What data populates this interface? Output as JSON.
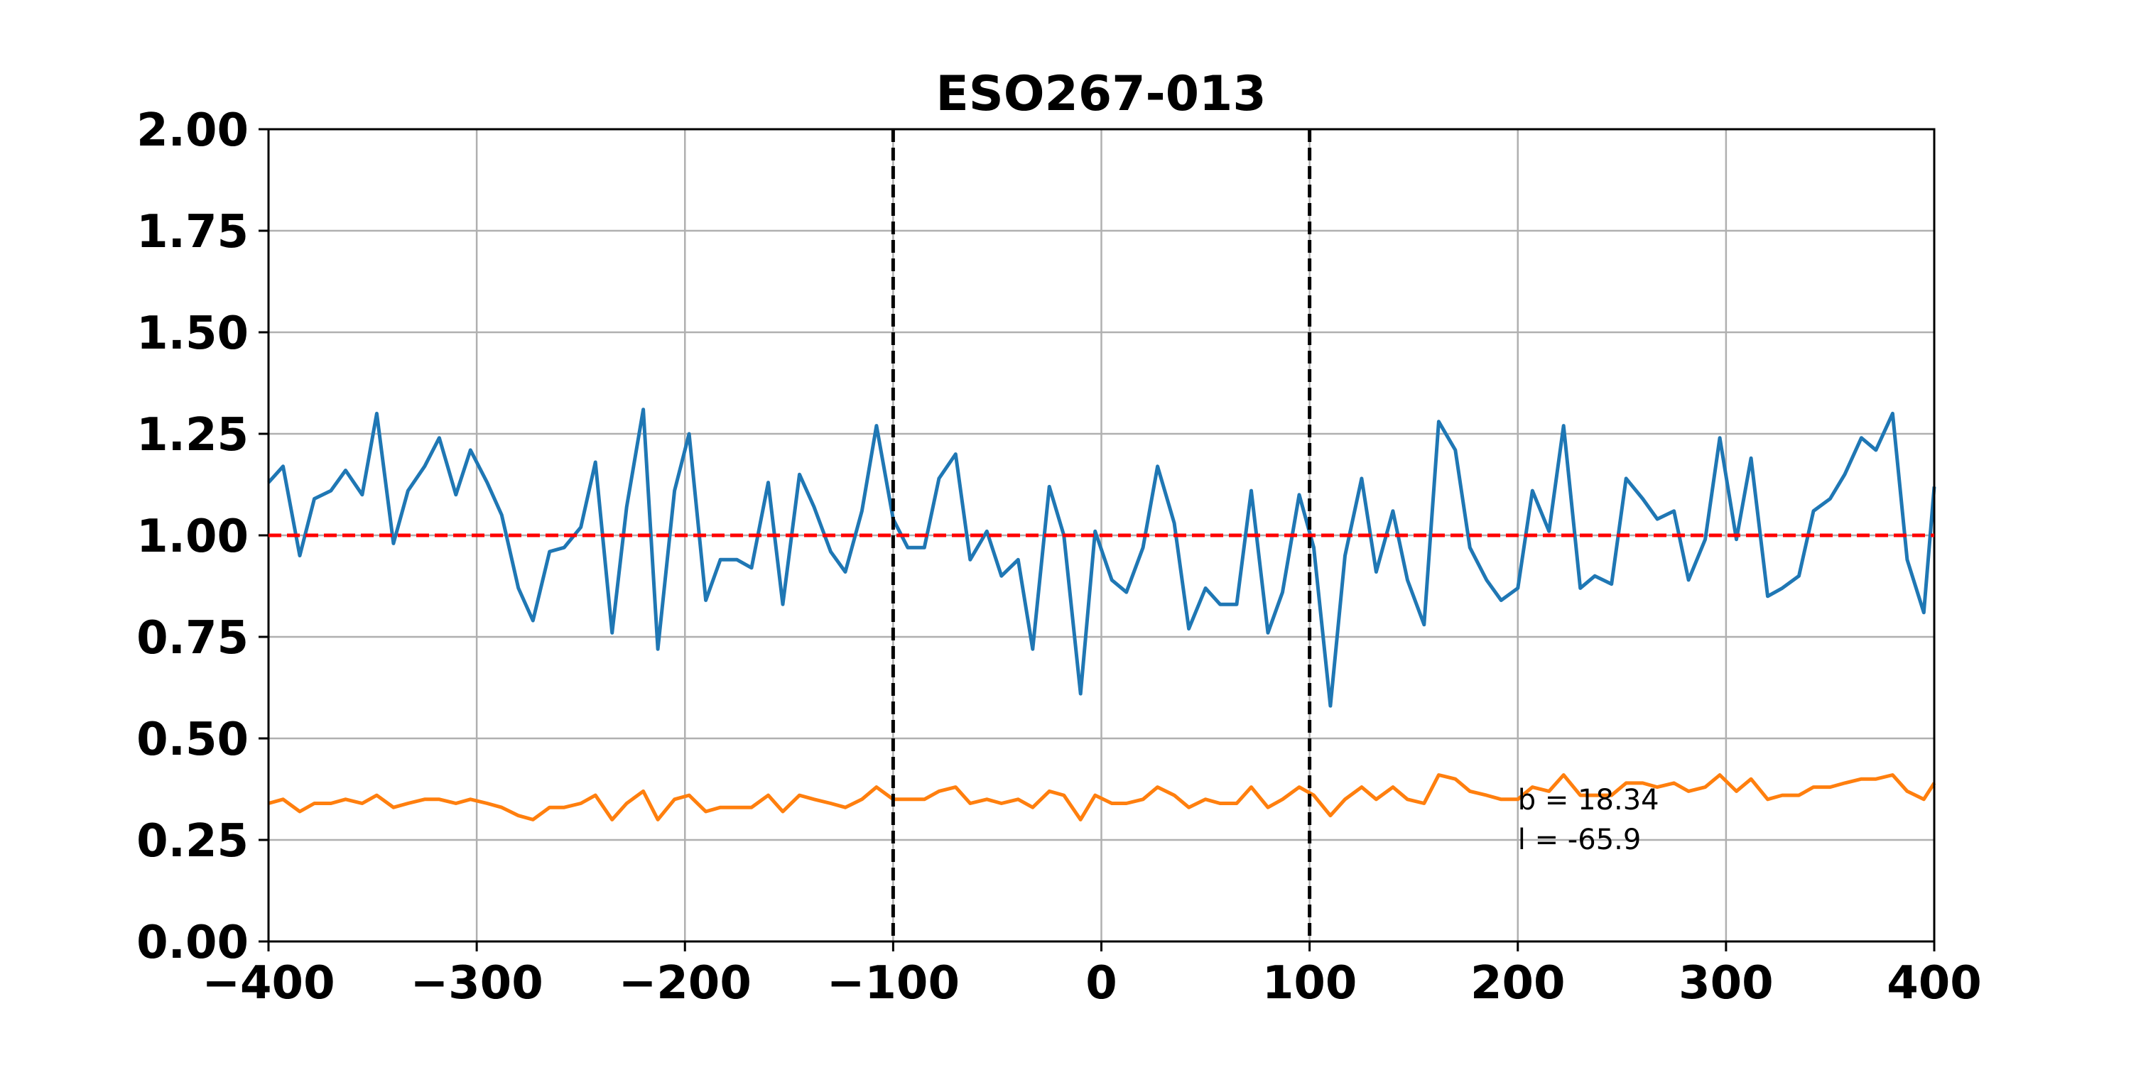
{
  "chart_data": {
    "type": "line",
    "title": "ESO267-013",
    "xlabel": "",
    "ylabel": "",
    "xlim": [
      -400,
      400
    ],
    "ylim": [
      0,
      2
    ],
    "grid": true,
    "xticks": [
      -400,
      -300,
      -200,
      -100,
      0,
      100,
      200,
      300,
      400
    ],
    "xtick_labels": [
      "−400",
      "−300",
      "−200",
      "−100",
      "0",
      "100",
      "200",
      "300",
      "400"
    ],
    "yticks": [
      0,
      0.25,
      0.5,
      0.75,
      1.0,
      1.25,
      1.5,
      1.75,
      2.0
    ],
    "ytick_labels": [
      "0.00",
      "0.25",
      "0.50",
      "0.75",
      "1.00",
      "1.25",
      "1.50",
      "1.75",
      "2.00"
    ],
    "hlines": [
      {
        "y": 1.0,
        "color": "#ff0000",
        "style": "dashed"
      }
    ],
    "vlines": [
      {
        "x": -100,
        "color": "#000000",
        "style": "dashed"
      },
      {
        "x": 100,
        "color": "#000000",
        "style": "dashed"
      }
    ],
    "annotations": [
      "b = 18.34",
      "l = -65.9"
    ],
    "annotation_anchor": {
      "x": 200,
      "y": 0.35
    },
    "series": [
      {
        "name": "series-1",
        "color": "#1f77b4",
        "points": [
          [
            -400,
            1.13
          ],
          [
            -393,
            1.17
          ],
          [
            -385,
            0.95
          ],
          [
            -378,
            1.09
          ],
          [
            -370,
            1.11
          ],
          [
            -363,
            1.16
          ],
          [
            -355,
            1.1
          ],
          [
            -348,
            1.3
          ],
          [
            -340,
            0.98
          ],
          [
            -333,
            1.11
          ],
          [
            -325,
            1.17
          ],
          [
            -318,
            1.24
          ],
          [
            -310,
            1.1
          ],
          [
            -303,
            1.21
          ],
          [
            -295,
            1.13
          ],
          [
            -288,
            1.05
          ],
          [
            -280,
            0.87
          ],
          [
            -273,
            0.79
          ],
          [
            -265,
            0.96
          ],
          [
            -258,
            0.97
          ],
          [
            -250,
            1.02
          ],
          [
            -243,
            1.18
          ],
          [
            -235,
            0.76
          ],
          [
            -228,
            1.07
          ],
          [
            -220,
            1.31
          ],
          [
            -213,
            0.72
          ],
          [
            -205,
            1.11
          ],
          [
            -198,
            1.25
          ],
          [
            -190,
            0.84
          ],
          [
            -183,
            0.94
          ],
          [
            -175,
            0.94
          ],
          [
            -168,
            0.92
          ],
          [
            -160,
            1.13
          ],
          [
            -153,
            0.83
          ],
          [
            -145,
            1.15
          ],
          [
            -138,
            1.07
          ],
          [
            -130,
            0.96
          ],
          [
            -123,
            0.91
          ],
          [
            -115,
            1.06
          ],
          [
            -108,
            1.27
          ],
          [
            -100,
            1.04
          ],
          [
            -93,
            0.97
          ],
          [
            -85,
            0.97
          ],
          [
            -78,
            1.14
          ],
          [
            -70,
            1.2
          ],
          [
            -63,
            0.94
          ],
          [
            -55,
            1.01
          ],
          [
            -48,
            0.9
          ],
          [
            -40,
            0.94
          ],
          [
            -33,
            0.72
          ],
          [
            -25,
            1.12
          ],
          [
            -18,
            1.0
          ],
          [
            -10,
            0.61
          ],
          [
            -3,
            1.01
          ],
          [
            5,
            0.89
          ],
          [
            12,
            0.86
          ],
          [
            20,
            0.97
          ],
          [
            27,
            1.17
          ],
          [
            35,
            1.03
          ],
          [
            42,
            0.77
          ],
          [
            50,
            0.87
          ],
          [
            57,
            0.83
          ],
          [
            65,
            0.83
          ],
          [
            72,
            1.11
          ],
          [
            80,
            0.76
          ],
          [
            87,
            0.86
          ],
          [
            95,
            1.1
          ],
          [
            102,
            0.97
          ],
          [
            110,
            0.58
          ],
          [
            117,
            0.95
          ],
          [
            125,
            1.14
          ],
          [
            132,
            0.91
          ],
          [
            140,
            1.06
          ],
          [
            147,
            0.89
          ],
          [
            155,
            0.78
          ],
          [
            162,
            1.28
          ],
          [
            170,
            1.21
          ],
          [
            177,
            0.97
          ],
          [
            185,
            0.89
          ],
          [
            192,
            0.84
          ],
          [
            200,
            0.87
          ],
          [
            207,
            1.11
          ],
          [
            215,
            1.01
          ],
          [
            222,
            1.27
          ],
          [
            230,
            0.87
          ],
          [
            237,
            0.9
          ],
          [
            245,
            0.88
          ],
          [
            252,
            1.14
          ],
          [
            260,
            1.09
          ],
          [
            267,
            1.04
          ],
          [
            275,
            1.06
          ],
          [
            282,
            0.89
          ],
          [
            290,
            0.99
          ],
          [
            297,
            1.24
          ],
          [
            305,
            0.99
          ],
          [
            312,
            1.19
          ],
          [
            320,
            0.85
          ],
          [
            327,
            0.87
          ],
          [
            335,
            0.9
          ],
          [
            342,
            1.06
          ],
          [
            350,
            1.09
          ],
          [
            357,
            1.15
          ],
          [
            365,
            1.24
          ],
          [
            372,
            1.21
          ],
          [
            380,
            1.3
          ],
          [
            387,
            0.94
          ],
          [
            395,
            0.81
          ],
          [
            400,
            1.12
          ]
        ]
      },
      {
        "name": "series-2",
        "color": "#ff7f0e",
        "points": [
          [
            -400,
            0.34
          ],
          [
            -393,
            0.35
          ],
          [
            -385,
            0.32
          ],
          [
            -378,
            0.34
          ],
          [
            -370,
            0.34
          ],
          [
            -363,
            0.35
          ],
          [
            -355,
            0.34
          ],
          [
            -348,
            0.36
          ],
          [
            -340,
            0.33
          ],
          [
            -333,
            0.34
          ],
          [
            -325,
            0.35
          ],
          [
            -318,
            0.35
          ],
          [
            -310,
            0.34
          ],
          [
            -303,
            0.35
          ],
          [
            -295,
            0.34
          ],
          [
            -288,
            0.33
          ],
          [
            -280,
            0.31
          ],
          [
            -273,
            0.3
          ],
          [
            -265,
            0.33
          ],
          [
            -258,
            0.33
          ],
          [
            -250,
            0.34
          ],
          [
            -243,
            0.36
          ],
          [
            -235,
            0.3
          ],
          [
            -228,
            0.34
          ],
          [
            -220,
            0.37
          ],
          [
            -213,
            0.3
          ],
          [
            -205,
            0.35
          ],
          [
            -198,
            0.36
          ],
          [
            -190,
            0.32
          ],
          [
            -183,
            0.33
          ],
          [
            -175,
            0.33
          ],
          [
            -168,
            0.33
          ],
          [
            -160,
            0.36
          ],
          [
            -153,
            0.32
          ],
          [
            -145,
            0.36
          ],
          [
            -138,
            0.35
          ],
          [
            -130,
            0.34
          ],
          [
            -123,
            0.33
          ],
          [
            -115,
            0.35
          ],
          [
            -108,
            0.38
          ],
          [
            -100,
            0.35
          ],
          [
            -93,
            0.35
          ],
          [
            -85,
            0.35
          ],
          [
            -78,
            0.37
          ],
          [
            -70,
            0.38
          ],
          [
            -63,
            0.34
          ],
          [
            -55,
            0.35
          ],
          [
            -48,
            0.34
          ],
          [
            -40,
            0.35
          ],
          [
            -33,
            0.33
          ],
          [
            -25,
            0.37
          ],
          [
            -18,
            0.36
          ],
          [
            -10,
            0.3
          ],
          [
            -3,
            0.36
          ],
          [
            5,
            0.34
          ],
          [
            12,
            0.34
          ],
          [
            20,
            0.35
          ],
          [
            27,
            0.38
          ],
          [
            35,
            0.36
          ],
          [
            42,
            0.33
          ],
          [
            50,
            0.35
          ],
          [
            57,
            0.34
          ],
          [
            65,
            0.34
          ],
          [
            72,
            0.38
          ],
          [
            80,
            0.33
          ],
          [
            87,
            0.35
          ],
          [
            95,
            0.38
          ],
          [
            102,
            0.36
          ],
          [
            110,
            0.31
          ],
          [
            117,
            0.35
          ],
          [
            125,
            0.38
          ],
          [
            132,
            0.35
          ],
          [
            140,
            0.38
          ],
          [
            147,
            0.35
          ],
          [
            155,
            0.34
          ],
          [
            162,
            0.41
          ],
          [
            170,
            0.4
          ],
          [
            177,
            0.37
          ],
          [
            185,
            0.36
          ],
          [
            192,
            0.35
          ],
          [
            200,
            0.35
          ],
          [
            207,
            0.38
          ],
          [
            215,
            0.37
          ],
          [
            222,
            0.41
          ],
          [
            230,
            0.36
          ],
          [
            237,
            0.36
          ],
          [
            245,
            0.36
          ],
          [
            252,
            0.39
          ],
          [
            260,
            0.39
          ],
          [
            267,
            0.38
          ],
          [
            275,
            0.39
          ],
          [
            282,
            0.37
          ],
          [
            290,
            0.38
          ],
          [
            297,
            0.41
          ],
          [
            305,
            0.37
          ],
          [
            312,
            0.4
          ],
          [
            320,
            0.35
          ],
          [
            327,
            0.36
          ],
          [
            335,
            0.36
          ],
          [
            342,
            0.38
          ],
          [
            350,
            0.38
          ],
          [
            357,
            0.39
          ],
          [
            365,
            0.4
          ],
          [
            372,
            0.4
          ],
          [
            380,
            0.41
          ],
          [
            387,
            0.37
          ],
          [
            395,
            0.35
          ],
          [
            400,
            0.39
          ]
        ]
      }
    ]
  }
}
